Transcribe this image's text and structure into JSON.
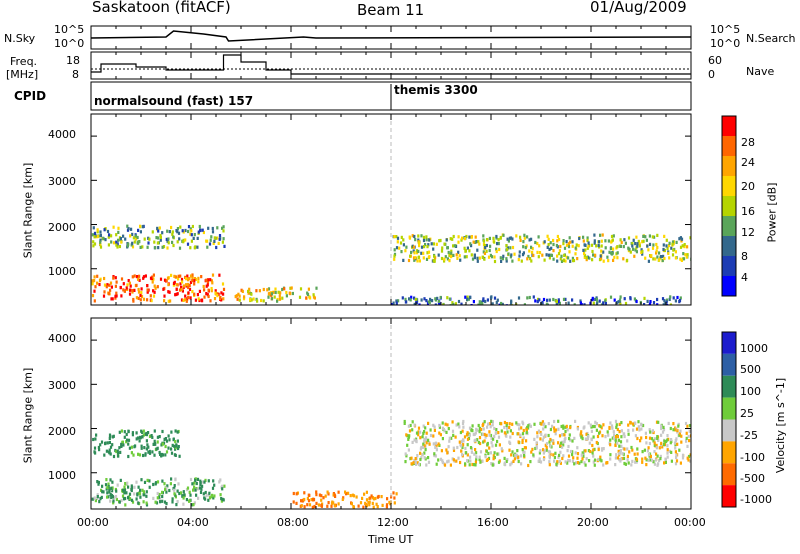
{
  "header": {
    "station": "Saskatoon (fitACF)",
    "beam": "Beam 11",
    "date": "01/Aug/2009"
  },
  "noise_panel": {
    "left_label": "N.Sky",
    "left_ticks": [
      "10^5",
      "10^0"
    ],
    "right_label": "N.Search",
    "right_ticks": [
      "10^5",
      "10^0"
    ]
  },
  "freq_panel": {
    "left_label_1": "Freq.",
    "left_label_2": "[MHz]",
    "left_ticks": [
      "18",
      "8"
    ],
    "right_label": "Nave",
    "right_ticks": [
      "60",
      "0"
    ]
  },
  "cpid": {
    "label": "CPID",
    "program_1": "normalsound (fast) 157",
    "program_2": "themis 3300"
  },
  "time_axis": {
    "label": "Time UT",
    "ticks": [
      "00:00",
      "04:00",
      "08:00",
      "12:00",
      "16:00",
      "20:00",
      "00:00"
    ]
  },
  "power_colorbar": {
    "label": "Power [dB]",
    "ticks": [
      "28",
      "24",
      "20",
      "16",
      "12",
      "8",
      "4"
    ],
    "colors": [
      "#ff0000",
      "#ff6600",
      "#ffa500",
      "#ffd700",
      "#b5d400",
      "#5aa55a",
      "#33688c",
      "#1c3cb4",
      "#0000ff"
    ]
  },
  "velocity_colorbar": {
    "label": "Velocity [m s^-1]",
    "ticks": [
      "1000",
      "500",
      "100",
      "25",
      "-25",
      "-100",
      "-500",
      "-1000"
    ],
    "colors": [
      "#1c1ccd",
      "#2d5fa5",
      "#2e8b57",
      "#6fcc3a",
      "#c8c8c8",
      "#ffa500",
      "#ff6a00",
      "#ff0000"
    ]
  },
  "chart_data": [
    {
      "type": "heatmap",
      "title": "Power [dB]",
      "xlabel": "Time UT",
      "ylabel": "Slant Range [km]",
      "xlim": [
        0,
        24
      ],
      "ylim": [
        180,
        4500
      ],
      "y_ticks": [
        1000,
        2000,
        3000,
        4000
      ],
      "colorbar_range": [
        0,
        30
      ],
      "regions": [
        {
          "t0": 0.0,
          "t1": 5.3,
          "r0": 300,
          "r1": 900,
          "value": 25
        },
        {
          "t0": 0.0,
          "t1": 5.3,
          "r0": 1500,
          "r1": 2000,
          "value": 12
        },
        {
          "t0": 5.5,
          "t1": 9.0,
          "r0": 300,
          "r1": 600,
          "value": 18
        },
        {
          "t0": 12.0,
          "t1": 24.0,
          "r0": 1200,
          "r1": 1800,
          "value": 14
        },
        {
          "t0": 12.0,
          "t1": 24.0,
          "r0": 180,
          "r1": 400,
          "value": 8
        }
      ]
    },
    {
      "type": "heatmap",
      "title": "Velocity [m s^-1]",
      "xlabel": "Time UT",
      "ylabel": "Slant Range [km]",
      "xlim": [
        0,
        24
      ],
      "ylim": [
        180,
        4500
      ],
      "y_ticks": [
        1000,
        2000,
        3000,
        4000
      ],
      "colorbar_range": [
        -1000,
        1000
      ],
      "regions": [
        {
          "t0": 0.0,
          "t1": 3.5,
          "r0": 1400,
          "r1": 2000,
          "value": 100
        },
        {
          "t0": 0.0,
          "t1": 5.3,
          "r0": 300,
          "r1": 900,
          "value": 60
        },
        {
          "t0": 8.0,
          "t1": 12.2,
          "r0": 250,
          "r1": 600,
          "value": -100
        },
        {
          "t0": 12.5,
          "t1": 24.0,
          "r0": 1200,
          "r1": 2200,
          "value": 0
        }
      ]
    }
  ]
}
